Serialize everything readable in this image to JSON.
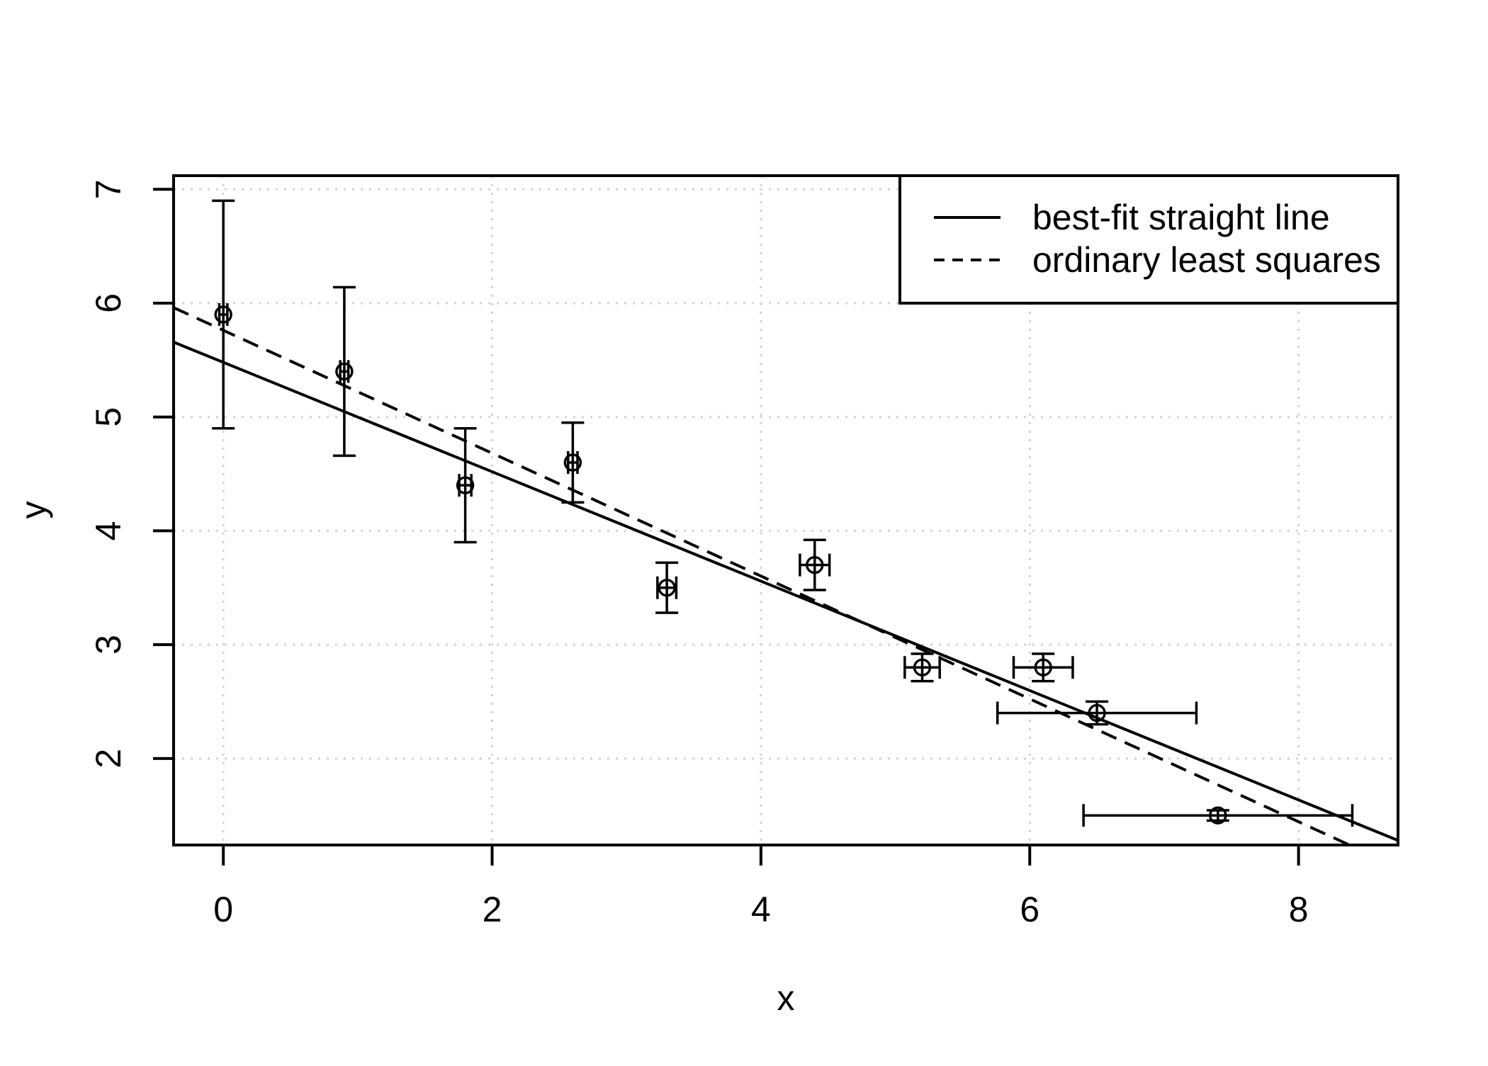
{
  "chart_data": {
    "type": "scatter",
    "title": "",
    "xlabel": "x",
    "ylabel": "y",
    "xlim": [
      -0.37,
      8.74
    ],
    "ylim": [
      1.24,
      7.12
    ],
    "x_ticks": [
      0,
      2,
      4,
      6,
      8
    ],
    "y_ticks": [
      2,
      3,
      4,
      5,
      6,
      7
    ],
    "grid": {
      "shown": true,
      "style": "dotted",
      "color": "#d4d4d4"
    },
    "marker": {
      "shape": "open-circle",
      "color": "#000000"
    },
    "points": [
      {
        "x": 0.0,
        "y": 5.9,
        "x_err": 0.03,
        "y_err": 1.0
      },
      {
        "x": 0.9,
        "y": 5.4,
        "x_err": 0.03,
        "y_err": 0.74
      },
      {
        "x": 1.8,
        "y": 4.4,
        "x_err": 0.045,
        "y_err": 0.5
      },
      {
        "x": 2.6,
        "y": 4.6,
        "x_err": 0.035,
        "y_err": 0.35
      },
      {
        "x": 3.3,
        "y": 3.5,
        "x_err": 0.07,
        "y_err": 0.22
      },
      {
        "x": 4.4,
        "y": 3.7,
        "x_err": 0.11,
        "y_err": 0.22
      },
      {
        "x": 5.2,
        "y": 2.8,
        "x_err": 0.13,
        "y_err": 0.12
      },
      {
        "x": 6.1,
        "y": 2.8,
        "x_err": 0.22,
        "y_err": 0.12
      },
      {
        "x": 6.5,
        "y": 2.4,
        "x_err": 0.74,
        "y_err": 0.1
      },
      {
        "x": 7.4,
        "y": 1.5,
        "x_err": 1.0,
        "y_err": 0.045
      }
    ],
    "lines": [
      {
        "label": "best-fit straight line",
        "style": "solid",
        "slope": -0.4805,
        "intercept": 5.48
      },
      {
        "label": "ordinary least squares",
        "style": "dashed",
        "slope": -0.5396,
        "intercept": 5.7612
      }
    ],
    "legend": {
      "position": "topright",
      "entries": [
        "best-fit straight line",
        "ordinary least squares"
      ]
    },
    "colors": {
      "foreground": "#000000",
      "background": "#ffffff",
      "gridline": "#d4d4d4"
    }
  }
}
